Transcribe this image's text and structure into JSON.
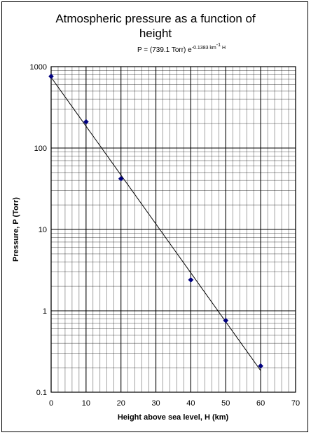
{
  "chart_data": {
    "type": "scatter",
    "title_line1": "Atmospheric pressure as a function of",
    "title_line2": "height",
    "equation": {
      "prefix": "P = (739.1 Torr) e",
      "exponent": "-0.1383 km",
      "exponent_sup": "-1",
      "exponent_suffix": " H"
    },
    "xlabel": "Height above sea level, H (km)",
    "ylabel": "Pressure, P (Torr)",
    "xlim": [
      0,
      70
    ],
    "ylim": [
      0.1,
      1000
    ],
    "yscale": "log",
    "grid": true,
    "xticks": [
      "0",
      "10",
      "20",
      "30",
      "40",
      "50",
      "60",
      "70"
    ],
    "yticks": [
      "0.1",
      "1",
      "10",
      "100",
      "1000"
    ],
    "points": [
      {
        "x": 0,
        "y": 760
      },
      {
        "x": 10,
        "y": 210
      },
      {
        "x": 20,
        "y": 42
      },
      {
        "x": 40,
        "y": 2.4
      },
      {
        "x": 50,
        "y": 0.76
      },
      {
        "x": 60,
        "y": 0.21
      }
    ],
    "fit": {
      "a": 739.1,
      "k": 0.1383
    },
    "colors": {
      "marker": "#00007f",
      "line": "#000000",
      "grid": "#000000"
    }
  }
}
